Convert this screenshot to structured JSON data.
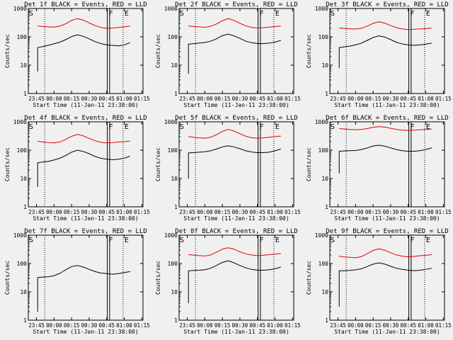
{
  "figure": {
    "background": "#f0f0f0",
    "colors": {
      "events": "#000000",
      "lld": "#e00000",
      "axis": "#000000"
    },
    "common": {
      "title_template": "Det {n}f BLACK = Events, RED = LLD",
      "ylabel": "Counts/sec",
      "xlabel": "Start Time (11-Jan-11 23:38:00)",
      "xticklabels": [
        "23:45",
        "00:00",
        "00:15",
        "00:30",
        "00:45",
        "01:00",
        "01:15"
      ],
      "yticklabels": [
        "1",
        "10",
        "100",
        "1000"
      ],
      "markers": {
        "start": "S",
        "flare": "F",
        "end": "E"
      }
    }
  },
  "chart_data": [
    {
      "type": "line",
      "detector": "1f",
      "title": "Det 1f BLACK = Events, RED = LLD",
      "xlabel": "Start Time (11-Jan-11 23:38:00)",
      "ylabel": "Counts/sec",
      "yscale": "log",
      "ylim": [
        1,
        1000
      ],
      "x_unit": "minutes from 23:38:00",
      "xlim": [
        0,
        98
      ],
      "x": [
        8,
        12,
        17,
        22,
        27,
        32,
        37,
        42,
        47,
        52,
        57,
        62,
        67,
        72,
        77,
        82,
        87
      ],
      "series": [
        {
          "name": "Events",
          "color": "#000000",
          "start_value": 6,
          "values": [
            42,
            45,
            50,
            57,
            65,
            80,
            102,
            118,
            104,
            85,
            68,
            58,
            52,
            50,
            48,
            52,
            62
          ]
        },
        {
          "name": "LLD",
          "color": "#e00000",
          "values": [
            240,
            232,
            225,
            220,
            240,
            290,
            380,
            440,
            390,
            310,
            250,
            215,
            200,
            205,
            215,
            225,
            240
          ]
        }
      ]
    },
    {
      "type": "line",
      "detector": "2f",
      "title": "Det 2f BLACK = Events, RED = LLD",
      "xlabel": "Start Time (11-Jan-11 23:38:00)",
      "ylabel": "Counts/sec",
      "yscale": "log",
      "ylim": [
        1,
        1000
      ],
      "x_unit": "minutes from 23:38:00",
      "xlim": [
        0,
        98
      ],
      "x": [
        8,
        12,
        17,
        22,
        27,
        32,
        37,
        42,
        47,
        52,
        57,
        62,
        67,
        72,
        77,
        82,
        87
      ],
      "series": [
        {
          "name": "Events",
          "color": "#000000",
          "start_value": 5,
          "values": [
            55,
            57,
            60,
            63,
            70,
            85,
            110,
            125,
            108,
            88,
            70,
            62,
            58,
            58,
            60,
            65,
            75
          ]
        },
        {
          "name": "LLD",
          "color": "#e00000",
          "values": [
            240,
            232,
            225,
            218,
            235,
            285,
            370,
            440,
            380,
            300,
            245,
            215,
            205,
            210,
            220,
            230,
            240
          ]
        }
      ]
    },
    {
      "type": "line",
      "detector": "3f",
      "title": "Det 3f BLACK = Events, RED = LLD",
      "xlabel": "Start Time (11-Jan-11 23:38:00)",
      "ylabel": "Counts/sec",
      "yscale": "log",
      "ylim": [
        1,
        1000
      ],
      "x_unit": "minutes from 23:38:00",
      "xlim": [
        0,
        98
      ],
      "x": [
        8,
        12,
        17,
        22,
        27,
        32,
        37,
        42,
        47,
        52,
        57,
        62,
        67,
        72,
        77,
        82,
        87
      ],
      "series": [
        {
          "name": "Events",
          "color": "#000000",
          "start_value": 8,
          "values": [
            42,
            44,
            47,
            52,
            60,
            75,
            95,
            108,
            98,
            80,
            64,
            56,
            52,
            50,
            52,
            55,
            60
          ]
        },
        {
          "name": "LLD",
          "color": "#e00000",
          "values": [
            205,
            198,
            192,
            188,
            200,
            240,
            300,
            340,
            305,
            250,
            210,
            190,
            180,
            185,
            190,
            195,
            205
          ]
        }
      ]
    },
    {
      "type": "line",
      "detector": "4f",
      "title": "Det 4f BLACK = Events, RED = LLD",
      "xlabel": "Start Time (11-Jan-11 23:38:00)",
      "ylabel": "Counts/sec",
      "yscale": "log",
      "ylim": [
        1,
        1000
      ],
      "x_unit": "minutes from 23:38:00",
      "xlim": [
        0,
        98
      ],
      "x": [
        8,
        12,
        17,
        22,
        27,
        32,
        37,
        42,
        47,
        52,
        57,
        62,
        67,
        72,
        77,
        82,
        87
      ],
      "series": [
        {
          "name": "Events",
          "color": "#000000",
          "start_value": 5,
          "values": [
            36,
            38,
            40,
            45,
            52,
            65,
            85,
            100,
            90,
            75,
            60,
            52,
            48,
            46,
            48,
            52,
            62
          ]
        },
        {
          "name": "LLD",
          "color": "#e00000",
          "values": [
            205,
            195,
            185,
            180,
            195,
            240,
            310,
            360,
            320,
            260,
            215,
            190,
            180,
            185,
            195,
            200,
            210
          ]
        }
      ]
    },
    {
      "type": "line",
      "detector": "5f",
      "title": "Det 5f BLACK = Events, RED = LLD",
      "xlabel": "Start Time (11-Jan-11 23:38:00)",
      "ylabel": "Counts/sec",
      "yscale": "log",
      "ylim": [
        1,
        1000
      ],
      "x_unit": "minutes from 23:38:00",
      "xlim": [
        0,
        98
      ],
      "x": [
        8,
        12,
        17,
        22,
        27,
        32,
        37,
        42,
        47,
        52,
        57,
        62,
        67,
        72,
        77,
        82,
        87
      ],
      "series": [
        {
          "name": "Events",
          "color": "#000000",
          "start_value": 10,
          "values": [
            80,
            82,
            85,
            88,
            95,
            110,
            130,
            142,
            130,
            112,
            95,
            86,
            82,
            82,
            85,
            95,
            110
          ]
        },
        {
          "name": "LLD",
          "color": "#e00000",
          "values": [
            300,
            285,
            272,
            265,
            285,
            350,
            460,
            540,
            470,
            380,
            310,
            275,
            265,
            270,
            285,
            300,
            315
          ]
        }
      ]
    },
    {
      "type": "line",
      "detector": "6f",
      "title": "Det 6f BLACK = Events, RED = LLD",
      "xlabel": "Start Time (11-Jan-11 23:38:00)",
      "ylabel": "Counts/sec",
      "yscale": "log",
      "ylim": [
        1,
        1000
      ],
      "x_unit": "minutes from 23:38:00",
      "xlim": [
        0,
        98
      ],
      "x": [
        8,
        12,
        17,
        22,
        27,
        32,
        37,
        42,
        47,
        52,
        57,
        62,
        67,
        72,
        77,
        82,
        87
      ],
      "series": [
        {
          "name": "Events",
          "color": "#000000",
          "start_value": 15,
          "values": [
            92,
            94,
            96,
            98,
            105,
            120,
            140,
            150,
            138,
            120,
            105,
            96,
            92,
            92,
            96,
            105,
            120
          ]
        },
        {
          "name": "LLD",
          "color": "#e00000",
          "values": [
            580,
            560,
            540,
            525,
            540,
            580,
            640,
            680,
            650,
            590,
            540,
            510,
            500,
            510,
            525,
            540,
            555
          ]
        }
      ]
    },
    {
      "type": "line",
      "detector": "7f",
      "title": "Det 7f BLACK = Events, RED = LLD",
      "xlabel": "Start Time (11-Jan-11 23:38:00)",
      "ylabel": "Counts/sec",
      "yscale": "log",
      "ylim": [
        1,
        1000
      ],
      "x_unit": "minutes from 23:38:00",
      "xlim": [
        0,
        98
      ],
      "x": [
        8,
        12,
        17,
        22,
        27,
        32,
        37,
        42,
        47,
        52,
        57,
        62,
        67,
        72,
        77,
        82,
        87
      ],
      "series": [
        {
          "name": "Events",
          "color": "#000000",
          "start_value": 2,
          "values": [
            32,
            33,
            34,
            37,
            45,
            60,
            78,
            85,
            75,
            62,
            52,
            46,
            44,
            42,
            44,
            48,
            52
          ]
        }
      ]
    },
    {
      "type": "line",
      "detector": "8f",
      "title": "Det 8f BLACK = Events, RED = LLD",
      "xlabel": "Start Time (11-Jan-11 23:38:00)",
      "ylabel": "Counts/sec",
      "yscale": "log",
      "ylim": [
        1,
        1000
      ],
      "x_unit": "minutes from 23:38:00",
      "xlim": [
        0,
        98
      ],
      "x": [
        8,
        12,
        17,
        22,
        27,
        32,
        37,
        42,
        47,
        52,
        57,
        62,
        67,
        72,
        77,
        82,
        87
      ],
      "series": [
        {
          "name": "Events",
          "color": "#000000",
          "start_value": 4,
          "values": [
            55,
            57,
            58,
            60,
            68,
            85,
            110,
            125,
            105,
            85,
            70,
            62,
            58,
            58,
            60,
            65,
            75
          ]
        },
        {
          "name": "LLD",
          "color": "#e00000",
          "values": [
            205,
            198,
            190,
            185,
            200,
            250,
            320,
            360,
            320,
            260,
            220,
            200,
            190,
            195,
            205,
            215,
            225
          ]
        }
      ]
    },
    {
      "type": "line",
      "detector": "9f",
      "title": "Det 9f BLACK = Events, RED = LLD",
      "xlabel": "Start Time (11-Jan-11 23:38:00)",
      "ylabel": "Counts/sec",
      "yscale": "log",
      "ylim": [
        1,
        1000
      ],
      "x_unit": "minutes from 23:38:00",
      "xlim": [
        0,
        98
      ],
      "x": [
        8,
        12,
        17,
        22,
        27,
        32,
        37,
        42,
        47,
        52,
        57,
        62,
        67,
        72,
        77,
        82,
        87
      ],
      "series": [
        {
          "name": "Events",
          "color": "#000000",
          "start_value": 3,
          "values": [
            55,
            56,
            57,
            60,
            65,
            78,
            95,
            105,
            95,
            80,
            68,
            62,
            58,
            56,
            58,
            62,
            68
          ]
        },
        {
          "name": "LLD",
          "color": "#e00000",
          "values": [
            180,
            172,
            165,
            160,
            175,
            225,
            290,
            330,
            295,
            240,
            200,
            180,
            172,
            178,
            188,
            195,
            205
          ]
        }
      ]
    }
  ]
}
